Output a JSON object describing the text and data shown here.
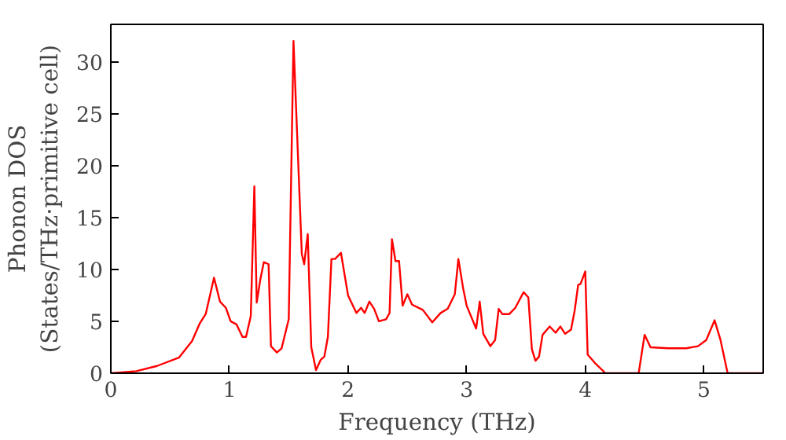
{
  "chart_data": {
    "type": "line",
    "xlabel": "Frequency (THz)",
    "ylabel": "Phonon DOS\n(States/THz·primitive cell)",
    "xlim": [
      0,
      5.5
    ],
    "ylim": [
      0,
      33.6
    ],
    "xticks": [
      0,
      1,
      2,
      3,
      4,
      5
    ],
    "yticks": [
      0,
      5,
      10,
      15,
      20,
      25,
      30
    ],
    "grid": false,
    "marker": "none",
    "line_style": "solid",
    "series": [
      {
        "color": "#ff0000",
        "x": [
          0,
          0.215,
          0.39,
          0.574,
          0.685,
          0.75,
          0.8,
          0.87,
          0.92,
          0.97,
          1.01,
          1.06,
          1.11,
          1.14,
          1.18,
          1.21,
          1.23,
          1.26,
          1.29,
          1.33,
          1.35,
          1.4,
          1.44,
          1.5,
          1.54,
          1.61,
          1.63,
          1.66,
          1.69,
          1.73,
          1.77,
          1.8,
          1.83,
          1.86,
          1.89,
          1.94,
          2.0,
          2.07,
          2.11,
          2.14,
          2.18,
          2.22,
          2.26,
          2.32,
          2.35,
          2.37,
          2.4,
          2.43,
          2.46,
          2.5,
          2.54,
          2.63,
          2.71,
          2.78,
          2.84,
          2.9,
          2.93,
          2.97,
          3.0,
          3.08,
          3.11,
          3.14,
          3.2,
          3.24,
          3.27,
          3.3,
          3.36,
          3.41,
          3.48,
          3.52,
          3.55,
          3.58,
          3.61,
          3.64,
          3.7,
          3.75,
          3.79,
          3.83,
          3.88,
          3.91,
          3.94,
          3.96,
          4.0,
          4.02,
          4.08,
          4.17,
          4.45,
          4.5,
          4.55,
          4.7,
          4.85,
          4.95,
          5.02,
          5.09,
          5.14,
          5.2,
          5.5
        ],
        "values": [
          0,
          0.2,
          0.7,
          1.5,
          3.1,
          4.8,
          5.7,
          9.2,
          6.9,
          6.3,
          5.0,
          4.7,
          3.5,
          3.5,
          5.5,
          18.0,
          6.8,
          9.0,
          10.7,
          10.5,
          2.6,
          2.0,
          2.4,
          5.2,
          32.0,
          11.5,
          10.5,
          13.4,
          2.5,
          0.3,
          1.3,
          1.6,
          3.5,
          11.0,
          11.0,
          11.6,
          7.5,
          5.8,
          6.3,
          5.8,
          6.9,
          6.2,
          5.0,
          5.2,
          5.8,
          12.9,
          10.8,
          10.8,
          6.5,
          7.6,
          6.6,
          6.1,
          4.9,
          5.8,
          6.2,
          7.6,
          11.0,
          8.2,
          6.5,
          4.3,
          6.9,
          3.8,
          2.6,
          3.2,
          6.2,
          5.7,
          5.7,
          6.3,
          7.8,
          7.3,
          2.3,
          1.2,
          1.6,
          3.7,
          4.5,
          3.9,
          4.5,
          3.8,
          4.2,
          6.0,
          8.5,
          8.6,
          9.8,
          1.8,
          1.0,
          0,
          0,
          3.7,
          2.5,
          2.4,
          2.4,
          2.6,
          3.2,
          5.1,
          3.2,
          0,
          0
        ]
      }
    ]
  }
}
